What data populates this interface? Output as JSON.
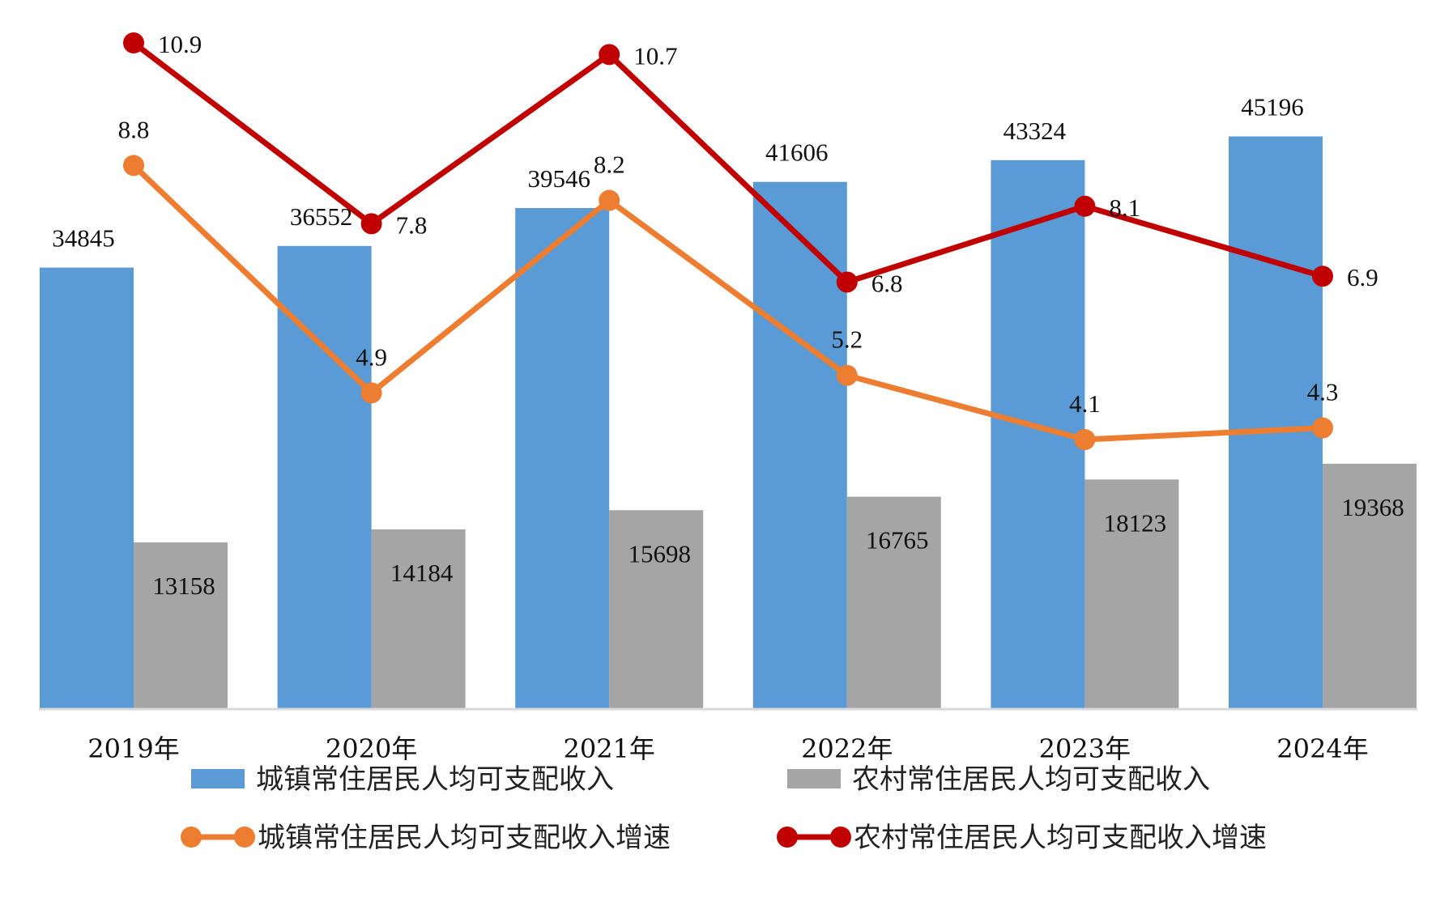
{
  "chart_data": {
    "type": "bar",
    "categories": [
      "2019年",
      "2020年",
      "2021年",
      "2022年",
      "2023年",
      "2024年"
    ],
    "series": [
      {
        "name": "城镇常住居民人均可支配收入",
        "kind": "bar",
        "color": "#5b9bd5",
        "values": [
          34845,
          36552,
          39546,
          41606,
          43324,
          45196
        ]
      },
      {
        "name": "农村常住居民人均可支配收入",
        "kind": "bar",
        "color": "#a5a5a5",
        "values": [
          13158,
          14184,
          15698,
          16765,
          18123,
          19368
        ]
      },
      {
        "name": "城镇常住居民人均可支配收入增速",
        "kind": "line",
        "color": "#ed7d31",
        "values": [
          8.8,
          4.9,
          8.2,
          5.2,
          4.1,
          4.3
        ]
      },
      {
        "name": "农村常住居民人均可支配收入增速",
        "kind": "line",
        "color": "#c00000",
        "values": [
          10.9,
          7.8,
          10.7,
          6.8,
          8.1,
          6.9
        ]
      }
    ],
    "bar_ylim": [
      0,
      50000
    ],
    "line_ylim": [
      -1,
      11.5
    ],
    "grid": false,
    "legend_position": "bottom"
  }
}
